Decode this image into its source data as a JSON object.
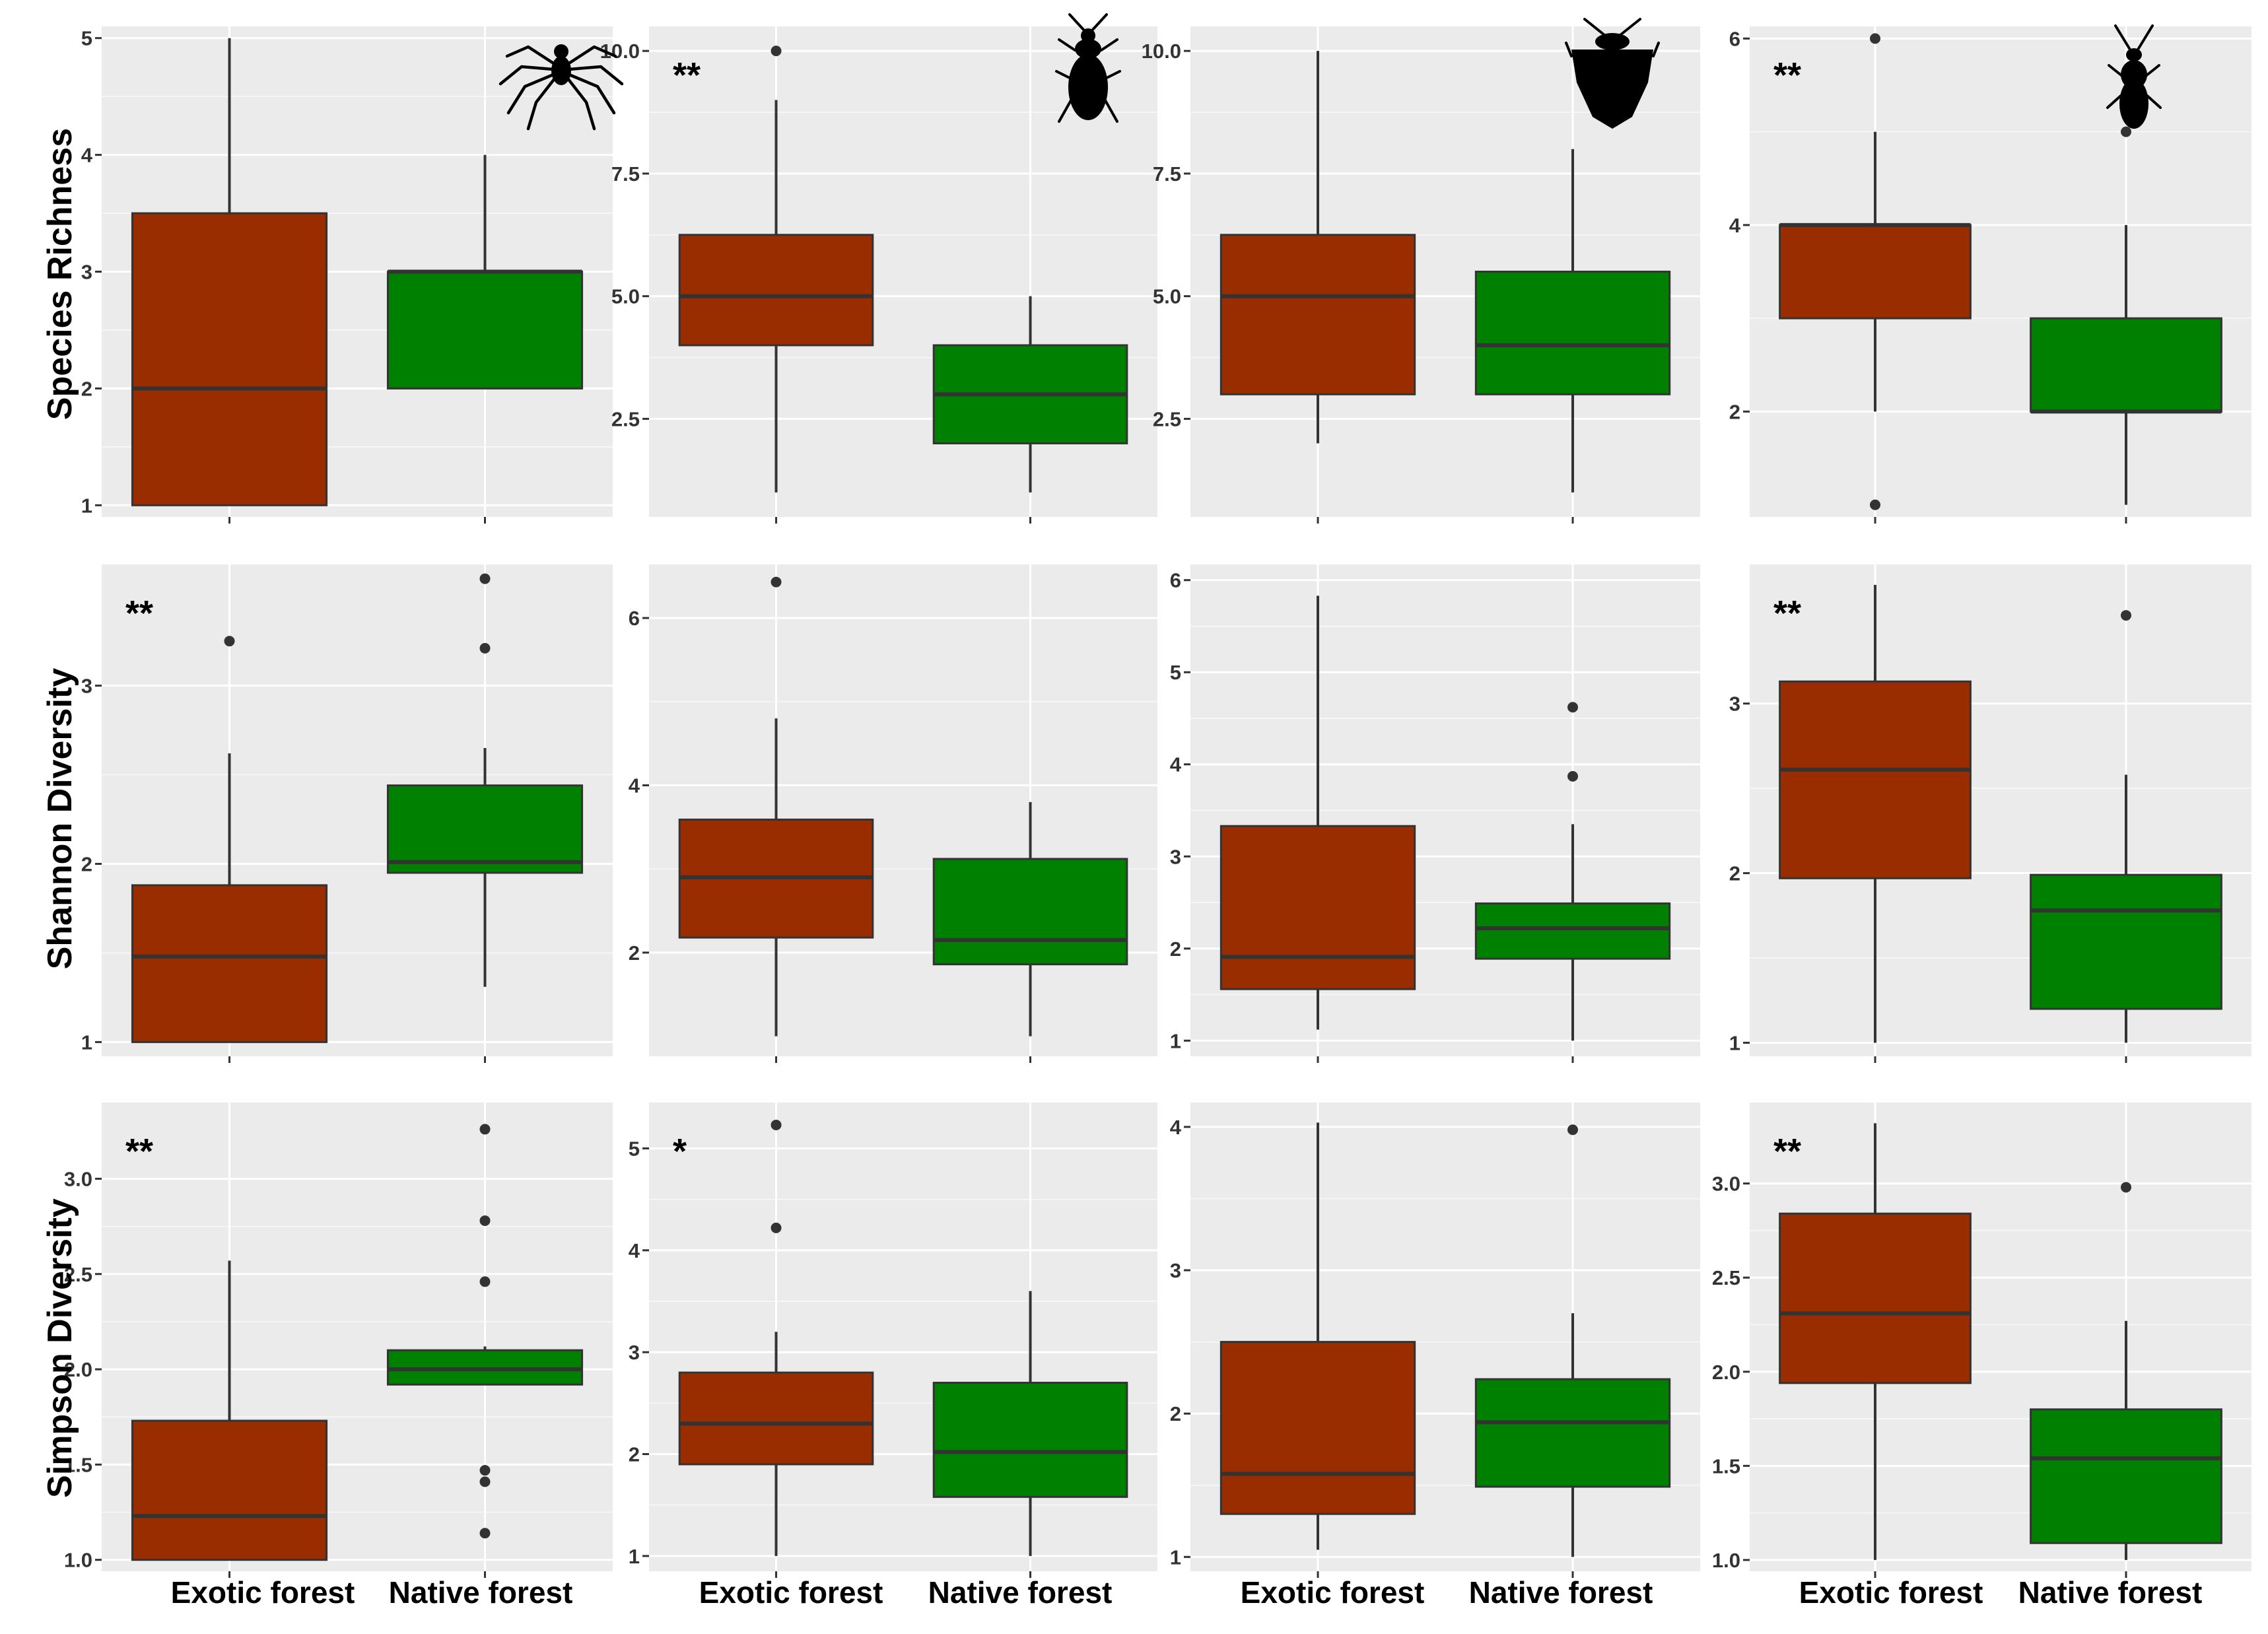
{
  "colors": {
    "exotic": "#992D00",
    "native": "#008000",
    "panel_bg": "#EBEBEB",
    "grid": "#FFFFFF",
    "line": "#333333"
  },
  "icons": [
    "spider-icon",
    "ground-beetle-icon",
    "shield-bug-icon",
    "rove-beetle-icon"
  ],
  "row_labels": [
    "Species Richness",
    "Shannon Diversity",
    "Simpson Diversity"
  ],
  "x_labels": [
    "Exotic forest",
    "Native forest"
  ],
  "chart_data": [
    {
      "type": "box",
      "row": "Species Richness",
      "categories": [
        "Exotic forest",
        "Native forest"
      ],
      "significance": "",
      "ylim": [
        0.9,
        5.1
      ],
      "yticks": [
        1,
        2,
        3,
        4,
        5
      ],
      "tick_labels": [
        "1",
        "2",
        "3",
        "4",
        "5"
      ],
      "series": [
        {
          "name": "Exotic forest",
          "min": 1,
          "q1": 1,
          "median": 2,
          "q3": 3.5,
          "max": 5,
          "outliers": []
        },
        {
          "name": "Native forest",
          "min": 2,
          "q1": 2,
          "median": 3,
          "q3": 3,
          "max": 4,
          "outliers": []
        }
      ]
    },
    {
      "type": "box",
      "row": "Species Richness",
      "categories": [
        "Exotic forest",
        "Native forest"
      ],
      "significance": "**",
      "ylim": [
        0.5,
        10.5
      ],
      "yticks": [
        2.5,
        5,
        7.5,
        10
      ],
      "tick_labels": [
        "2.5",
        "5.0",
        "7.5",
        "10.0"
      ],
      "series": [
        {
          "name": "Exotic forest",
          "min": 1,
          "q1": 4,
          "median": 5,
          "q3": 6.25,
          "max": 9,
          "outliers": [
            10
          ]
        },
        {
          "name": "Native forest",
          "min": 1,
          "q1": 2,
          "median": 3,
          "q3": 4,
          "max": 5,
          "outliers": []
        }
      ]
    },
    {
      "type": "box",
      "row": "Species Richness",
      "categories": [
        "Exotic forest",
        "Native forest"
      ],
      "significance": "",
      "ylim": [
        0.5,
        10.5
      ],
      "yticks": [
        2.5,
        5,
        7.5,
        10
      ],
      "tick_labels": [
        "2.5",
        "5.0",
        "7.5",
        "10.0"
      ],
      "series": [
        {
          "name": "Exotic forest",
          "min": 2,
          "q1": 3,
          "median": 5,
          "q3": 6.25,
          "max": 10,
          "outliers": []
        },
        {
          "name": "Native forest",
          "min": 1,
          "q1": 3,
          "median": 4,
          "q3": 5.5,
          "max": 8,
          "outliers": []
        }
      ]
    },
    {
      "type": "box",
      "row": "Species Richness",
      "categories": [
        "Exotic forest",
        "Native forest"
      ],
      "significance": "**",
      "ylim": [
        0.87,
        6.13
      ],
      "yticks": [
        2,
        4,
        6
      ],
      "tick_labels": [
        "2",
        "4",
        "6"
      ],
      "series": [
        {
          "name": "Exotic forest",
          "min": 2,
          "q1": 3,
          "median": 4,
          "q3": 4,
          "max": 5,
          "outliers": [
            1,
            6
          ]
        },
        {
          "name": "Native forest",
          "min": 1,
          "q1": 2,
          "median": 2,
          "q3": 3,
          "max": 4,
          "outliers": [
            5
          ]
        }
      ]
    },
    {
      "type": "box",
      "row": "Shannon Diversity",
      "categories": [
        "Exotic forest",
        "Native forest"
      ],
      "significance": "**",
      "ylim": [
        0.92,
        3.68
      ],
      "yticks": [
        1,
        2,
        3
      ],
      "tick_labels": [
        "1",
        "2",
        "3"
      ],
      "series": [
        {
          "name": "Exotic forest",
          "min": 1,
          "q1": 1,
          "median": 1.48,
          "q3": 1.88,
          "max": 2.62,
          "outliers": [
            3.25
          ]
        },
        {
          "name": "Native forest",
          "min": 1.31,
          "q1": 1.95,
          "median": 2.01,
          "q3": 2.44,
          "max": 2.65,
          "outliers": [
            3.21,
            3.6
          ]
        }
      ]
    },
    {
      "type": "box",
      "row": "Shannon Diversity",
      "categories": [
        "Exotic forest",
        "Native forest"
      ],
      "significance": "",
      "ylim": [
        0.76,
        6.64
      ],
      "yticks": [
        2,
        4,
        6
      ],
      "tick_labels": [
        "2",
        "4",
        "6"
      ],
      "series": [
        {
          "name": "Exotic forest",
          "min": 1,
          "q1": 2.18,
          "median": 2.9,
          "q3": 3.59,
          "max": 4.8,
          "outliers": [
            6.43
          ]
        },
        {
          "name": "Native forest",
          "min": 1,
          "q1": 1.86,
          "median": 2.15,
          "q3": 3.12,
          "max": 3.8,
          "outliers": []
        }
      ]
    },
    {
      "type": "box",
      "row": "Shannon Diversity",
      "categories": [
        "Exotic forest",
        "Native forest"
      ],
      "significance": "",
      "ylim": [
        0.83,
        6.17
      ],
      "yticks": [
        1,
        2,
        3,
        4,
        5,
        6
      ],
      "tick_labels": [
        "1",
        "2",
        "3",
        "4",
        "5",
        "6"
      ],
      "series": [
        {
          "name": "Exotic forest",
          "min": 1.12,
          "q1": 1.56,
          "median": 1.91,
          "q3": 3.33,
          "max": 5.83,
          "outliers": []
        },
        {
          "name": "Native forest",
          "min": 1,
          "q1": 1.89,
          "median": 2.22,
          "q3": 2.49,
          "max": 3.35,
          "outliers": [
            3.87,
            4.62
          ]
        }
      ]
    },
    {
      "type": "box",
      "row": "Shannon Diversity",
      "categories": [
        "Exotic forest",
        "Native forest"
      ],
      "significance": "**",
      "ylim": [
        0.92,
        3.82
      ],
      "yticks": [
        1,
        2,
        3
      ],
      "tick_labels": [
        "1",
        "2",
        "3"
      ],
      "series": [
        {
          "name": "Exotic forest",
          "min": 1,
          "q1": 1.97,
          "median": 2.61,
          "q3": 3.13,
          "max": 3.7,
          "outliers": []
        },
        {
          "name": "Native forest",
          "min": 1,
          "q1": 1.2,
          "median": 1.78,
          "q3": 1.99,
          "max": 2.58,
          "outliers": [
            3.52
          ]
        }
      ]
    },
    {
      "type": "box",
      "row": "Simpson Diversity",
      "categories": [
        "Exotic forest",
        "Native forest"
      ],
      "significance": "**",
      "ylim": [
        0.94,
        3.4
      ],
      "yticks": [
        1,
        1.5,
        2,
        2.5,
        3
      ],
      "tick_labels": [
        "1.0",
        "1.5",
        "2.0",
        "2.5",
        "3.0"
      ],
      "series": [
        {
          "name": "Exotic forest",
          "min": 1,
          "q1": 1,
          "median": 1.23,
          "q3": 1.73,
          "max": 2.57,
          "outliers": []
        },
        {
          "name": "Native forest",
          "min": 1.92,
          "q1": 1.92,
          "median": 2,
          "q3": 2.1,
          "max": 2.12,
          "outliers": [
            1.14,
            1.41,
            1.47,
            2.46,
            2.78,
            3.26
          ]
        }
      ]
    },
    {
      "type": "box",
      "row": "Simpson Diversity",
      "categories": [
        "Exotic forest",
        "Native forest"
      ],
      "significance": "*",
      "ylim": [
        0.85,
        5.45
      ],
      "yticks": [
        1,
        2,
        3,
        4,
        5
      ],
      "tick_labels": [
        "1",
        "2",
        "3",
        "4",
        "5"
      ],
      "series": [
        {
          "name": "Exotic forest",
          "min": 1,
          "q1": 1.9,
          "median": 2.3,
          "q3": 2.8,
          "max": 3.2,
          "outliers": [
            4.22,
            5.23
          ]
        },
        {
          "name": "Native forest",
          "min": 1,
          "q1": 1.58,
          "median": 2.02,
          "q3": 2.7,
          "max": 3.6,
          "outliers": []
        }
      ]
    },
    {
      "type": "box",
      "row": "Simpson Diversity",
      "categories": [
        "Exotic forest",
        "Native forest"
      ],
      "significance": "",
      "ylim": [
        0.9,
        4.17
      ],
      "yticks": [
        1,
        2,
        3,
        4
      ],
      "tick_labels": [
        "1",
        "2",
        "3",
        "4"
      ],
      "series": [
        {
          "name": "Exotic forest",
          "min": 1.05,
          "q1": 1.3,
          "median": 1.58,
          "q3": 2.5,
          "max": 4.03,
          "outliers": []
        },
        {
          "name": "Native forest",
          "min": 1,
          "q1": 1.49,
          "median": 1.94,
          "q3": 2.24,
          "max": 2.7,
          "outliers": [
            3.98
          ]
        }
      ]
    },
    {
      "type": "box",
      "row": "Simpson Diversity",
      "categories": [
        "Exotic forest",
        "Native forest"
      ],
      "significance": "**",
      "ylim": [
        0.94,
        3.43
      ],
      "yticks": [
        1,
        1.5,
        2,
        2.5,
        3
      ],
      "tick_labels": [
        "1.0",
        "1.5",
        "2.0",
        "2.5",
        "3.0"
      ],
      "series": [
        {
          "name": "Exotic forest",
          "min": 1,
          "q1": 1.94,
          "median": 2.31,
          "q3": 2.84,
          "max": 3.32,
          "outliers": []
        },
        {
          "name": "Native forest",
          "min": 1,
          "q1": 1.09,
          "median": 1.54,
          "q3": 1.8,
          "max": 2.27,
          "outliers": [
            2.98
          ]
        }
      ]
    }
  ]
}
